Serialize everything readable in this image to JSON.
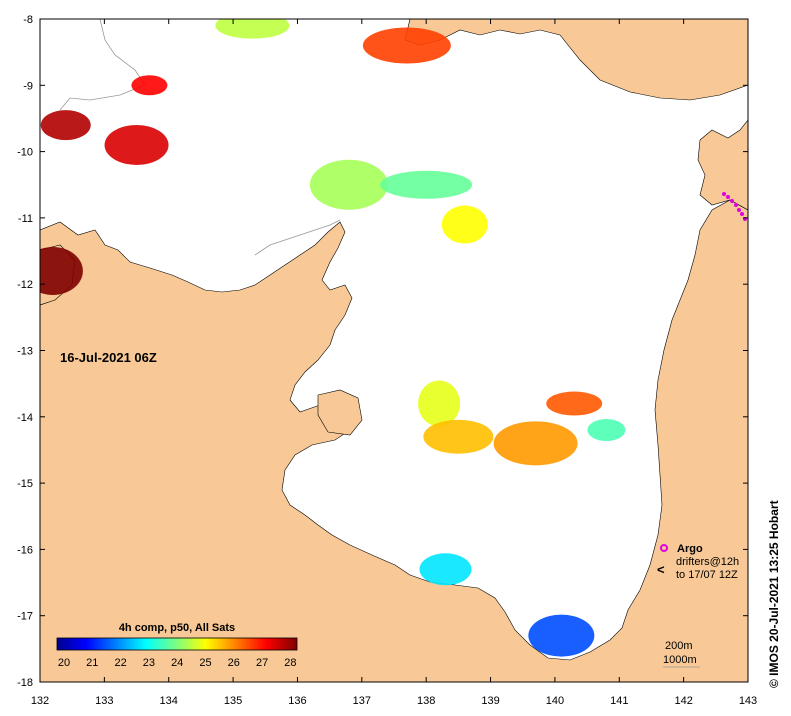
{
  "map": {
    "date_label": "16-Jul-2021 06Z",
    "credit": "© IMOS 20-Jul-2021 13:25 Hobart",
    "lon_ticks": [
      "132",
      "133",
      "134",
      "135",
      "136",
      "137",
      "138",
      "139",
      "140",
      "141",
      "142",
      "143"
    ],
    "lat_ticks": [
      "-8",
      "-9",
      "-10",
      "-11",
      "-12",
      "-13",
      "-14",
      "-15",
      "-16",
      "-17",
      "-18"
    ],
    "colors": {
      "land": "#f8c996",
      "sea": "#ffffff",
      "argo": "#e000e0",
      "isobath": "#999999"
    }
  },
  "colorbar": {
    "title": "4h comp, p50, All Sats",
    "ticks": [
      "20",
      "21",
      "22",
      "23",
      "24",
      "25",
      "26",
      "27",
      "28"
    ],
    "range": [
      20,
      28
    ]
  },
  "legend": {
    "argo_label": "Argo",
    "drifters_line1": "drifters@12h",
    "drifters_line2": "to 17/07 12Z",
    "isobath_200": "200m",
    "isobath_1000": "1000m"
  },
  "sst_patches": [
    {
      "lon": 133.7,
      "lat": -9.0,
      "sst": 27.0
    },
    {
      "lon": 132.4,
      "lat": -9.6,
      "sst": 27.6
    },
    {
      "lon": 133.5,
      "lat": -9.9,
      "sst": 27.3
    },
    {
      "lon": 136.8,
      "lat": -10.5,
      "sst": 24.3
    },
    {
      "lon": 138.0,
      "lat": -10.5,
      "sst": 23.8
    },
    {
      "lon": 138.6,
      "lat": -11.1,
      "sst": 25.0
    },
    {
      "lon": 132.2,
      "lat": -11.8,
      "sst": 28.0
    },
    {
      "lon": 135.3,
      "lat": -8.1,
      "sst": 24.5
    },
    {
      "lon": 137.7,
      "lat": -8.4,
      "sst": 26.5
    },
    {
      "lon": 138.2,
      "lat": -13.8,
      "sst": 24.8
    },
    {
      "lon": 140.3,
      "lat": -13.8,
      "sst": 26.3
    },
    {
      "lon": 138.5,
      "lat": -14.3,
      "sst": 25.5
    },
    {
      "lon": 139.7,
      "lat": -14.4,
      "sst": 25.8
    },
    {
      "lon": 140.8,
      "lat": -14.2,
      "sst": 23.6
    },
    {
      "lon": 138.3,
      "lat": -16.3,
      "sst": 22.8
    },
    {
      "lon": 140.1,
      "lat": -17.3,
      "sst": 21.6
    }
  ]
}
